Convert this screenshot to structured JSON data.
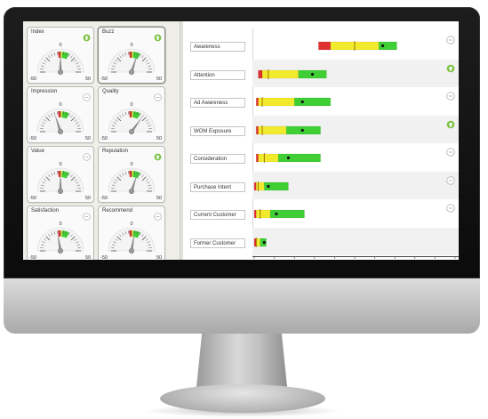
{
  "colors": {
    "red": "#e03030",
    "yellow": "#f2ea2c",
    "green": "#3fcf34",
    "green_badge": "#7ac142",
    "grey_badge": "#b8b8b8"
  },
  "gauges": [
    {
      "label": "Index",
      "badge": "up-arrow-icon",
      "value": 0.0,
      "selected": false
    },
    {
      "label": "Buzz",
      "badge": "up-arrow-icon",
      "value": 10,
      "selected": true
    },
    {
      "label": "Impression",
      "badge": "neutral-icon",
      "value": -10,
      "selected": false
    },
    {
      "label": "Quality",
      "badge": "neutral-icon",
      "value": 20,
      "selected": false
    },
    {
      "label": "Value",
      "badge": "neutral-icon",
      "value": 0,
      "selected": false
    },
    {
      "label": "Reputation",
      "badge": "up-arrow-icon",
      "value": 10,
      "selected": false
    },
    {
      "label": "Satisfaction",
      "badge": "neutral-icon",
      "value": -5,
      "selected": false
    },
    {
      "label": "Recommend",
      "badge": "neutral-icon",
      "value": 5,
      "selected": false
    }
  ],
  "gauge_scale": {
    "min_label": "-50",
    "mid_label": "0",
    "max_label": "50",
    "min": -50,
    "max": 50
  },
  "funnel": {
    "x_range": [
      0,
      100
    ],
    "stages": [
      {
        "label": "Awareness",
        "red": [
          32,
          38
        ],
        "yellow": [
          38,
          62
        ],
        "green": [
          62,
          71
        ],
        "marker": 64,
        "line": 50,
        "badge": "neutral-icon"
      },
      {
        "label": "Attention",
        "red": [
          2,
          4
        ],
        "yellow": [
          4,
          22
        ],
        "green": [
          22,
          36
        ],
        "marker": 29,
        "line": 7,
        "badge": "up-arrow-icon"
      },
      {
        "label": "Ad Awareness",
        "red": [
          1,
          2
        ],
        "yellow": [
          2,
          20
        ],
        "green": [
          20,
          38
        ],
        "marker": 24,
        "line": 4,
        "badge": "neutral-icon"
      },
      {
        "label": "WOM Exposure",
        "red": [
          1,
          2
        ],
        "yellow": [
          2,
          16
        ],
        "green": [
          16,
          33
        ],
        "marker": 24,
        "line": 4,
        "badge": "up-arrow-icon"
      },
      {
        "label": "Consideration",
        "red": [
          1,
          2
        ],
        "yellow": [
          2,
          12
        ],
        "green": [
          12,
          33
        ],
        "marker": 17,
        "line": 5,
        "badge": "neutral-icon"
      },
      {
        "label": "Purchase Intent",
        "red": [
          0,
          1
        ],
        "yellow": [
          1,
          5
        ],
        "green": [
          5,
          17
        ],
        "marker": 7,
        "line": 2,
        "badge": "neutral-icon"
      },
      {
        "label": "Current Customer",
        "red": [
          0,
          1
        ],
        "yellow": [
          1,
          8
        ],
        "green": [
          8,
          25
        ],
        "marker": 11,
        "line": 3,
        "badge": "neutral-icon"
      },
      {
        "label": "Former Customer",
        "red": [
          0,
          1
        ],
        "yellow": [
          1,
          3
        ],
        "green": [
          3,
          6
        ],
        "marker": 5,
        "line": 1,
        "badge": ""
      }
    ]
  }
}
